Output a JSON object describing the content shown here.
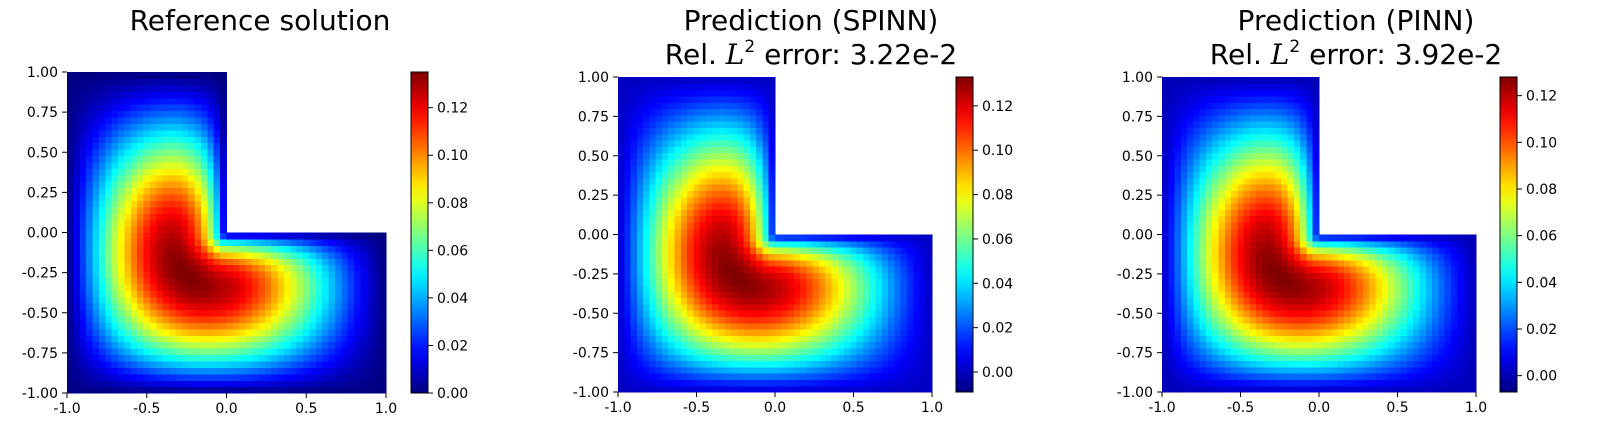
{
  "chart_data": [
    {
      "type": "heatmap",
      "title": "Reference solution",
      "subtitle": "",
      "domain": "L-shaped",
      "colormap": "jet",
      "xlim": [
        -1.0,
        1.0
      ],
      "ylim": [
        -1.0,
        1.0
      ],
      "xticks": [
        "-1.0",
        "-0.5",
        "0.0",
        "0.5",
        "1.0"
      ],
      "yticks": [
        "1.00",
        "0.75",
        "0.50",
        "0.25",
        "0.00",
        "-0.25",
        "-0.50",
        "-0.75",
        "-1.00"
      ],
      "colorbar": {
        "min": 0.0,
        "max": 0.135,
        "ticks": [
          "0.00",
          "0.02",
          "0.04",
          "0.06",
          "0.08",
          "0.10",
          "0.12"
        ]
      },
      "peak": {
        "x": -0.35,
        "y": -0.32,
        "value": 0.135
      }
    },
    {
      "type": "heatmap",
      "title": "Prediction (SPINN)",
      "subtitle": {
        "prefix": "Rel. ",
        "symbol": "L",
        "exponent": "2",
        "suffix": " error: 3.22e-2"
      },
      "domain": "L-shaped",
      "colormap": "jet",
      "xlim": [
        -1.0,
        1.0
      ],
      "ylim": [
        -1.0,
        1.0
      ],
      "xticks": [
        "-1.0",
        "-0.5",
        "0.0",
        "0.5",
        "1.0"
      ],
      "yticks": [
        "1.00",
        "0.75",
        "0.50",
        "0.25",
        "0.00",
        "-0.25",
        "-0.50",
        "-0.75",
        "-1.00"
      ],
      "colorbar": {
        "min": -0.009,
        "max": 0.133,
        "ticks": [
          "0.00",
          "0.02",
          "0.04",
          "0.06",
          "0.08",
          "0.10",
          "0.12"
        ]
      },
      "peak": {
        "x": -0.35,
        "y": -0.32,
        "value": 0.133
      }
    },
    {
      "type": "heatmap",
      "title": "Prediction (PINN)",
      "subtitle": {
        "prefix": "Rel. ",
        "symbol": "L",
        "exponent": "2",
        "suffix": " error: 3.92e-2"
      },
      "domain": "L-shaped",
      "colormap": "jet",
      "xlim": [
        -1.0,
        1.0
      ],
      "ylim": [
        -1.0,
        1.0
      ],
      "xticks": [
        "-1.0",
        "-0.5",
        "0.0",
        "0.5",
        "1.0"
      ],
      "yticks": [
        "1.00",
        "0.75",
        "0.50",
        "0.25",
        "0.00",
        "-0.25",
        "-0.50",
        "-0.75",
        "-1.00"
      ],
      "colorbar": {
        "min": -0.007,
        "max": 0.128,
        "ticks": [
          "0.00",
          "0.02",
          "0.04",
          "0.06",
          "0.08",
          "0.10",
          "0.12"
        ]
      },
      "peak": {
        "x": -0.35,
        "y": -0.32,
        "value": 0.128
      }
    }
  ]
}
